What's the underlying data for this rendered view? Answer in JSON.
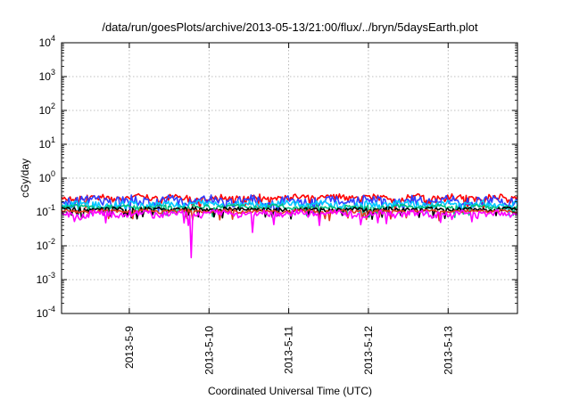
{
  "chart_data": {
    "type": "line",
    "title": "/data/run/goesPlots/archive/2013-05-13/21:00/flux/../bryn/5daysEarth.plot",
    "xlabel": "Coordinated Universal Time (UTC)",
    "ylabel": "cGy/day",
    "yscale": "log",
    "ylim": [
      0.0001,
      10000
    ],
    "xlim": [
      8.15,
      13.87
    ],
    "grid": true,
    "y_ticks": [
      {
        "base": "10",
        "exp": "-4",
        "value": 0.0001
      },
      {
        "base": "10",
        "exp": "-3",
        "value": 0.001
      },
      {
        "base": "10",
        "exp": "-2",
        "value": 0.01
      },
      {
        "base": "10",
        "exp": "-1",
        "value": 0.1
      },
      {
        "base": "10",
        "exp": "0",
        "value": 1
      },
      {
        "base": "10",
        "exp": "1",
        "value": 10
      },
      {
        "base": "10",
        "exp": "2",
        "value": 100
      },
      {
        "base": "10",
        "exp": "3",
        "value": 1000
      },
      {
        "base": "10",
        "exp": "4",
        "value": 10000
      }
    ],
    "x_ticks": [
      {
        "label": "2013-5-9",
        "value": 9
      },
      {
        "label": "2013-5-10",
        "value": 10
      },
      {
        "label": "2013-5-11",
        "value": 11
      },
      {
        "label": "2013-5-12",
        "value": 12
      },
      {
        "label": "2013-5-13",
        "value": 13
      }
    ],
    "series": [
      {
        "color": "#ff0000",
        "base": 0.26,
        "amp": 0.06
      },
      {
        "color": "#2f3fff",
        "base": 0.22,
        "amp": 0.07
      },
      {
        "color": "#00c8ff",
        "base": 0.17,
        "amp": 0.04
      },
      {
        "color": "#00c080",
        "base": 0.14,
        "amp": 0.02
      },
      {
        "color": "#000000",
        "base": 0.12,
        "amp": 0.015
      },
      {
        "color": "#e03a1e",
        "base": 0.105,
        "amp": 0.012
      },
      {
        "color": "#ff00ff",
        "base": 0.09,
        "amp": 0.02
      }
    ],
    "dips": [
      {
        "series": 6,
        "x": 9.74,
        "y": 0.04
      },
      {
        "series": 6,
        "x": 9.78,
        "y": 0.0045
      },
      {
        "series": 6,
        "x": 10.55,
        "y": 0.025
      },
      {
        "series": 6,
        "x": 13.05,
        "y": 0.06
      }
    ]
  }
}
